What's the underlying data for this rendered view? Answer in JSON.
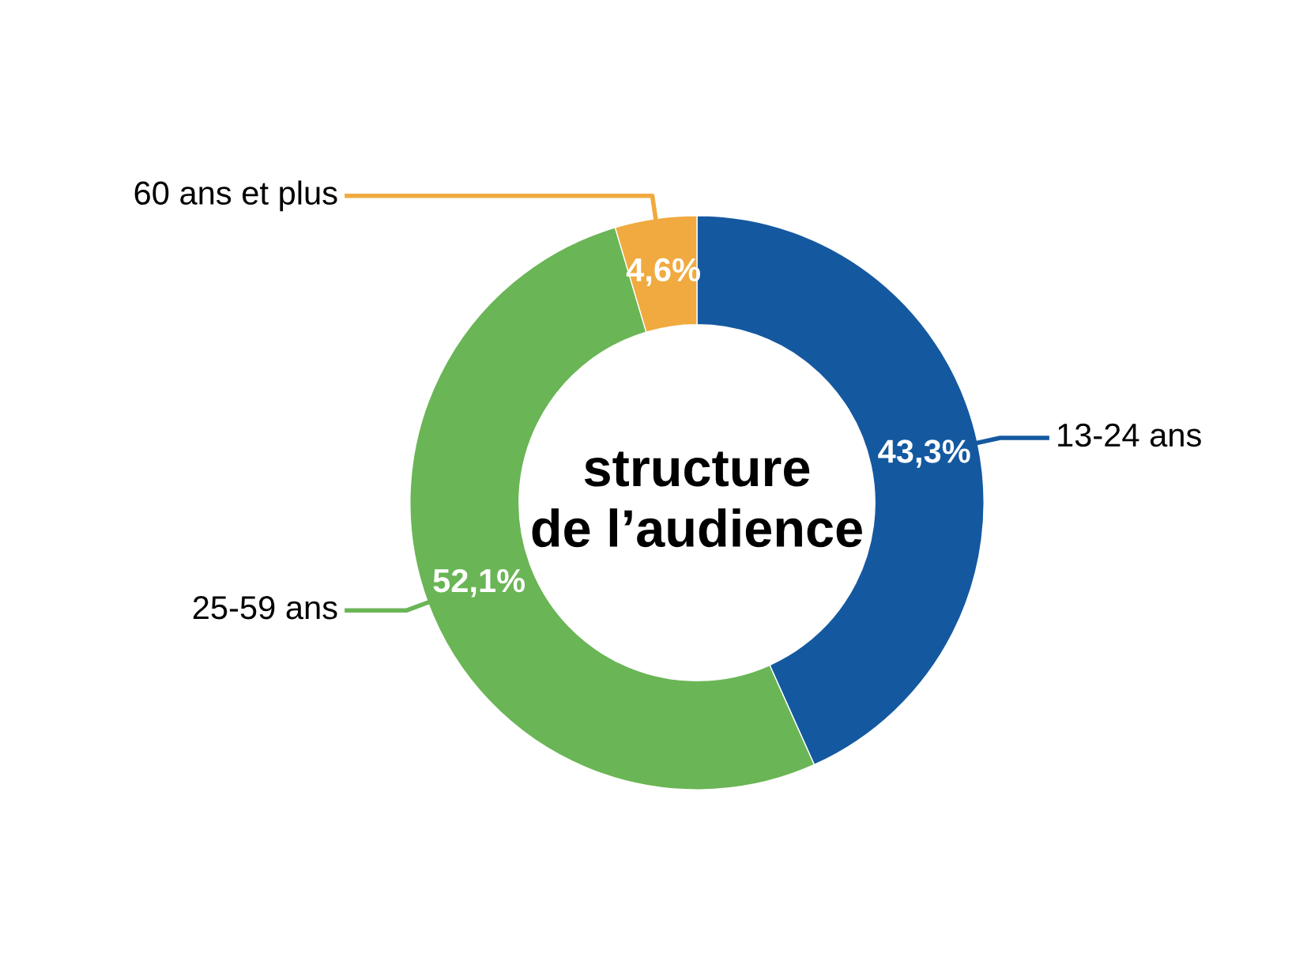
{
  "chart_data": {
    "type": "donut",
    "title": "structure\nde l’audience",
    "categories": [
      "13-24 ans",
      "25-59 ans",
      "60 ans et plus"
    ],
    "values": [
      43.3,
      52.1,
      4.6
    ],
    "colors": [
      "#1459a0",
      "#6ab556",
      "#f0aa3f"
    ],
    "value_labels": [
      "43,3%",
      "52,1%",
      "4,6%"
    ],
    "legend": false
  }
}
